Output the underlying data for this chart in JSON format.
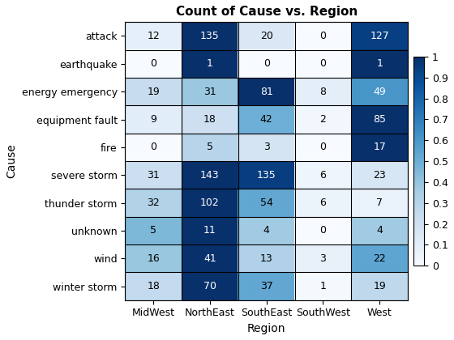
{
  "title": "Count of Cause vs. Region",
  "xlabel": "Region",
  "ylabel": "Cause",
  "columns": [
    "MidWest",
    "NorthEast",
    "SouthEast",
    "SouthWest",
    "West"
  ],
  "rows": [
    "attack",
    "earthquake",
    "energy emergency",
    "equipment fault",
    "fire",
    "severe storm",
    "thunder storm",
    "unknown",
    "wind",
    "winter storm"
  ],
  "values": [
    [
      12,
      135,
      20,
      0,
      127
    ],
    [
      0,
      1,
      0,
      0,
      1
    ],
    [
      19,
      31,
      81,
      8,
      49
    ],
    [
      9,
      18,
      42,
      2,
      85
    ],
    [
      0,
      5,
      3,
      0,
      17
    ],
    [
      31,
      143,
      135,
      6,
      23
    ],
    [
      32,
      102,
      54,
      6,
      7
    ],
    [
      5,
      11,
      4,
      0,
      4
    ],
    [
      16,
      41,
      13,
      3,
      22
    ],
    [
      18,
      70,
      37,
      1,
      19
    ]
  ],
  "colormap": "Blues",
  "title_fontsize": 11,
  "label_fontsize": 10,
  "tick_fontsize": 9,
  "annot_fontsize": 9,
  "white_text_threshold": 0.55
}
